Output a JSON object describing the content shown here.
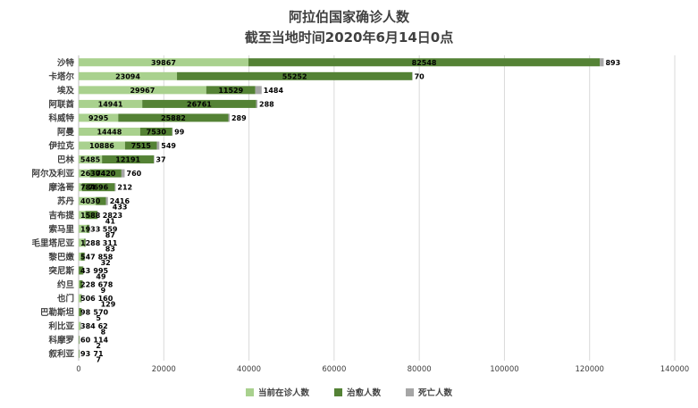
{
  "title": "阿拉伯国家确诊人数",
  "subtitle": "截至当地时间2020年6月14日0点",
  "legend": [
    {
      "label": "当前在诊人数",
      "color": "#a9d18e"
    },
    {
      "label": "治愈人数",
      "color": "#548235"
    },
    {
      "label": "死亡人数",
      "color": "#a6a6a6"
    }
  ],
  "colors": {
    "background": "#ffffff",
    "title_text": "#404040",
    "axis_text": "#404040",
    "data_label": "#000000",
    "gridline": "#d9d9d9",
    "axis_line": "#bfbfbf"
  },
  "chart_data": {
    "type": "bar",
    "orientation": "horizontal",
    "stacked": true,
    "title": "阿拉伯国家确诊人数",
    "subtitle": "截至当地时间2020年6月14日0点",
    "categories": [
      "沙特",
      "卡塔尔",
      "埃及",
      "阿联酋",
      "科威特",
      "阿曼",
      "伊拉克",
      "巴林",
      "阿尔及利亚",
      "摩洛哥",
      "苏丹",
      "吉布提",
      "索马里",
      "毛里塔尼亚",
      "黎巴嫩",
      "突尼斯",
      "约旦",
      "也门",
      "巴勒斯坦",
      "利比亚",
      "科摩罗",
      "叙利亚"
    ],
    "series": [
      {
        "name": "当前在诊人数",
        "color": "#a9d18e",
        "values": [
          39867,
          23094,
          29967,
          14941,
          9295,
          14448,
          10886,
          5485,
          2630,
          784,
          4030,
          1588,
          1933,
          1288,
          547,
          43,
          228,
          506,
          98,
          384,
          60,
          93
        ]
      },
      {
        "name": "治愈人数",
        "color": "#548235",
        "values": [
          82548,
          55252,
          11529,
          26761,
          25882,
          7530,
          7515,
          12191,
          7420,
          7696,
          2416,
          2823,
          559,
          311,
          858,
          995,
          678,
          160,
          570,
          62,
          114,
          71
        ]
      },
      {
        "name": "死亡人数",
        "color": "#a6a6a6",
        "values": [
          893,
          70,
          1484,
          288,
          289,
          99,
          549,
          37,
          760,
          212,
          433,
          41,
          87,
          83,
          32,
          49,
          9,
          129,
          5,
          8,
          2,
          7
        ]
      }
    ],
    "xlim": [
      0,
      140000
    ],
    "x_ticks": [
      "0",
      "20000",
      "40000",
      "60000",
      "80000",
      "100000",
      "120000",
      "140000"
    ],
    "grid": true,
    "legend_position": "bottom"
  }
}
